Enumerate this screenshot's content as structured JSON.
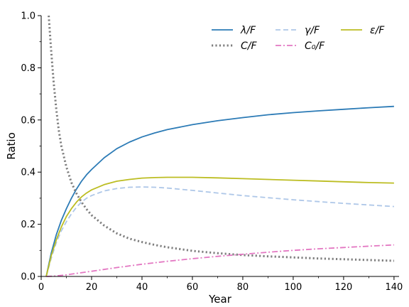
{
  "chart_data": {
    "type": "line",
    "title": "",
    "xlabel": "Year",
    "ylabel": "Ratio",
    "xlim": [
      0,
      142
    ],
    "ylim": [
      0,
      1.0
    ],
    "xticks": [
      "0",
      "20",
      "40",
      "60",
      "80",
      "100",
      "120",
      "140"
    ],
    "yticks": [
      "0.0",
      "0.2",
      "0.4",
      "0.6",
      "0.8",
      "1.0"
    ],
    "grid": false,
    "legend": {
      "placement": "top-right",
      "columns": 3
    },
    "series": [
      {
        "name": "λ/F",
        "color": "#2c7bb6",
        "style": "solid",
        "x": [
          2,
          4,
          6,
          8,
          10,
          12,
          14,
          16,
          18,
          20,
          25,
          30,
          35,
          40,
          45,
          50,
          60,
          70,
          80,
          90,
          100,
          110,
          120,
          130,
          140
        ],
        "y": [
          0.0,
          0.09,
          0.16,
          0.215,
          0.26,
          0.3,
          0.335,
          0.365,
          0.39,
          0.41,
          0.455,
          0.49,
          0.515,
          0.535,
          0.55,
          0.563,
          0.582,
          0.597,
          0.609,
          0.62,
          0.628,
          0.635,
          0.641,
          0.647,
          0.652
        ]
      },
      {
        "name": "γ/F",
        "color": "#aec7e8",
        "style": "dashed",
        "x": [
          2,
          4,
          6,
          8,
          10,
          12,
          14,
          16,
          18,
          20,
          25,
          30,
          35,
          40,
          45,
          50,
          60,
          70,
          80,
          90,
          100,
          110,
          120,
          130,
          140
        ],
        "y": [
          0.0,
          0.07,
          0.13,
          0.175,
          0.21,
          0.24,
          0.265,
          0.285,
          0.3,
          0.31,
          0.328,
          0.337,
          0.342,
          0.343,
          0.342,
          0.339,
          0.33,
          0.32,
          0.31,
          0.302,
          0.294,
          0.287,
          0.28,
          0.274,
          0.268
        ]
      },
      {
        "name": "ε/F",
        "color": "#bcbd22",
        "style": "solid",
        "x": [
          2,
          4,
          6,
          8,
          10,
          12,
          14,
          16,
          18,
          20,
          25,
          30,
          35,
          40,
          45,
          50,
          55,
          60,
          70,
          80,
          90,
          100,
          110,
          120,
          130,
          140
        ],
        "y": [
          0.0,
          0.08,
          0.14,
          0.19,
          0.23,
          0.26,
          0.285,
          0.305,
          0.32,
          0.332,
          0.352,
          0.365,
          0.372,
          0.377,
          0.379,
          0.38,
          0.38,
          0.38,
          0.378,
          0.375,
          0.372,
          0.369,
          0.366,
          0.363,
          0.36,
          0.358
        ]
      },
      {
        "name": "C/F",
        "color": "#7f7f7f",
        "style": "dotted",
        "x": [
          3,
          4,
          5,
          6,
          7,
          8,
          10,
          12,
          14,
          16,
          18,
          20,
          25,
          30,
          35,
          40,
          45,
          50,
          60,
          70,
          80,
          90,
          100,
          110,
          120,
          130,
          140
        ],
        "y": [
          1.0,
          0.86,
          0.74,
          0.64,
          0.56,
          0.5,
          0.42,
          0.36,
          0.318,
          0.285,
          0.258,
          0.235,
          0.195,
          0.165,
          0.145,
          0.132,
          0.121,
          0.112,
          0.098,
          0.089,
          0.082,
          0.077,
          0.073,
          0.069,
          0.066,
          0.063,
          0.06
        ]
      },
      {
        "name": "C₀/F",
        "color": "#e377c2",
        "style": "dashdot",
        "x": [
          2,
          5,
          10,
          15,
          20,
          30,
          40,
          50,
          60,
          70,
          80,
          90,
          100,
          110,
          120,
          130,
          140
        ],
        "y": [
          0.0,
          0.001,
          0.006,
          0.013,
          0.02,
          0.034,
          0.047,
          0.058,
          0.068,
          0.077,
          0.085,
          0.093,
          0.1,
          0.106,
          0.111,
          0.116,
          0.121
        ]
      }
    ]
  }
}
